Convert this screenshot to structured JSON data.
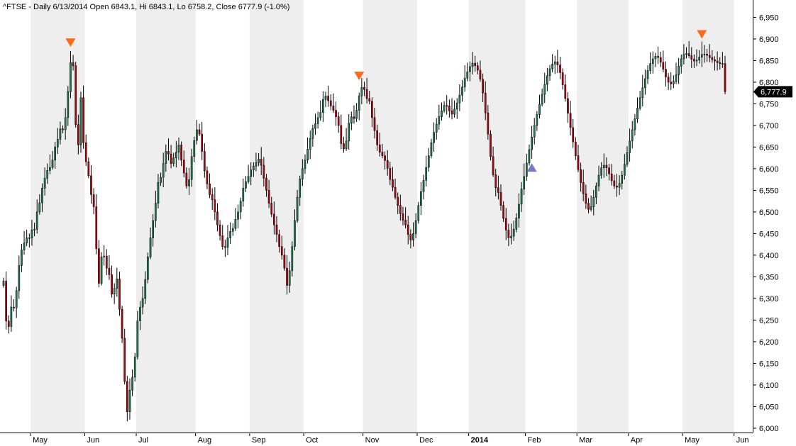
{
  "header": {
    "text": "^FTSE - Daily 6/13/2014 Open 6843.1, Hi 6843.1, Lo 6758.2, Close 6777.9 (-1.0%)"
  },
  "price_tag": {
    "label": "6,777.9",
    "value": 6777.9
  },
  "colors": {
    "up": "#1f7a50",
    "down": "#b4000a",
    "wick": "#000000",
    "band": "#eeeeee",
    "marker_top": "#ff6a1a",
    "marker_bottom": "#7a78c2",
    "price_tag": "#000000",
    "axis": "#000000"
  },
  "chart_data": {
    "type": "candlestick",
    "title": "^FTSE - Daily 6/13/2014 Open 6843.1, Hi 6843.1, Lo 6758.2, Close 6777.9 (-1.0%)",
    "ylim": [
      5990,
      6990
    ],
    "y_ticks": [
      "6,000",
      "6,050",
      "6,100",
      "6,150",
      "6,200",
      "6,250",
      "6,300",
      "6,350",
      "6,400",
      "6,450",
      "6,500",
      "6,550",
      "6,600",
      "6,650",
      "6,700",
      "6,750",
      "6,800",
      "6,850",
      "6,900",
      "6,950"
    ],
    "y_tick_values": [
      6000,
      6050,
      6100,
      6150,
      6200,
      6250,
      6300,
      6350,
      6400,
      6450,
      6500,
      6550,
      6600,
      6650,
      6700,
      6750,
      6800,
      6850,
      6900,
      6950
    ],
    "x_labels": [
      {
        "label": "May",
        "index": 11,
        "bold": false
      },
      {
        "label": "Jun",
        "index": 32,
        "bold": false
      },
      {
        "label": "Jul",
        "index": 52,
        "bold": false
      },
      {
        "label": "Aug",
        "index": 75,
        "bold": false
      },
      {
        "label": "Sep",
        "index": 96,
        "bold": false
      },
      {
        "label": "Oct",
        "index": 117,
        "bold": false
      },
      {
        "label": "Nov",
        "index": 140,
        "bold": false
      },
      {
        "label": "Dec",
        "index": 161,
        "bold": false
      },
      {
        "label": "2014",
        "index": 181,
        "bold": true
      },
      {
        "label": "Feb",
        "index": 203,
        "bold": false
      },
      {
        "label": "Mar",
        "index": 223,
        "bold": false
      },
      {
        "label": "Apr",
        "index": 243,
        "bold": false
      },
      {
        "label": "May",
        "index": 264,
        "bold": false
      },
      {
        "label": "Jun",
        "index": 284,
        "bold": false
      }
    ],
    "month_starts": [
      0,
      11,
      32,
      52,
      75,
      96,
      117,
      140,
      161,
      181,
      203,
      223,
      243,
      264,
      284,
      294
    ],
    "markers": [
      {
        "type": "top",
        "index": 26
      },
      {
        "type": "top",
        "index": 138
      },
      {
        "type": "bottom",
        "index": 205
      },
      {
        "type": "top",
        "index": 271
      }
    ],
    "closes": [
      6340,
      6248,
      6235,
      6280,
      6278,
      6318,
      6376,
      6412,
      6428,
      6440,
      6440,
      6458,
      6460,
      6500,
      6521,
      6555,
      6578,
      6596,
      6603,
      6620,
      6650,
      6668,
      6692,
      6690,
      6718,
      6778,
      6845,
      6838,
      6702,
      6655,
      6764,
      6660,
      6616,
      6584,
      6540,
      6512,
      6415,
      6335,
      6396,
      6398,
      6370,
      6355,
      6310,
      6323,
      6345,
      6275,
      6208,
      6108,
      6038,
      6088,
      6118,
      6165,
      6248,
      6280,
      6300,
      6344,
      6396,
      6440,
      6480,
      6520,
      6568,
      6580,
      6612,
      6640,
      6634,
      6612,
      6625,
      6638,
      6655,
      6620,
      6590,
      6560,
      6575,
      6628,
      6665,
      6690,
      6680,
      6640,
      6595,
      6565,
      6540,
      6528,
      6500,
      6470,
      6445,
      6420,
      6418,
      6440,
      6455,
      6462,
      6483,
      6500,
      6525,
      6555,
      6570,
      6582,
      6597,
      6606,
      6614,
      6622,
      6608,
      6578,
      6550,
      6520,
      6495,
      6470,
      6448,
      6420,
      6400,
      6370,
      6330,
      6364,
      6420,
      6480,
      6534,
      6576,
      6600,
      6620,
      6645,
      6670,
      6693,
      6704,
      6718,
      6730,
      6760,
      6768,
      6757,
      6745,
      6735,
      6720,
      6700,
      6658,
      6646,
      6664,
      6705,
      6720,
      6716,
      6735,
      6768,
      6788,
      6783,
      6762,
      6756,
      6718,
      6688,
      6655,
      6638,
      6630,
      6619,
      6601,
      6575,
      6557,
      6534,
      6515,
      6496,
      6481,
      6470,
      6448,
      6435,
      6450,
      6480,
      6515,
      6547,
      6573,
      6603,
      6630,
      6660,
      6684,
      6703,
      6720,
      6734,
      6746,
      6745,
      6734,
      6726,
      6738,
      6752,
      6770,
      6789,
      6809,
      6824,
      6836,
      6844,
      6838,
      6828,
      6807,
      6775,
      6729,
      6680,
      6628,
      6586,
      6556,
      6545,
      6515,
      6485,
      6458,
      6440,
      6444,
      6460,
      6486,
      6518,
      6553,
      6582,
      6613,
      6644,
      6673,
      6700,
      6725,
      6749,
      6772,
      6795,
      6815,
      6831,
      6842,
      6847,
      6840,
      6822,
      6794,
      6762,
      6728,
      6695,
      6662,
      6630,
      6598,
      6568,
      6542,
      6520,
      6506,
      6512,
      6534,
      6560,
      6585,
      6602,
      6608,
      6602,
      6588,
      6572,
      6560,
      6557,
      6566,
      6585,
      6610,
      6637,
      6664,
      6690,
      6715,
      6740,
      6764,
      6787,
      6808,
      6827,
      6843,
      6854,
      6860,
      6857,
      6846,
      6830,
      6812,
      6800,
      6796,
      6802,
      6817,
      6837,
      6854,
      6864,
      6866,
      6861,
      6853,
      6849,
      6851,
      6858,
      6864,
      6865,
      6862,
      6857,
      6852,
      6849,
      6845,
      6843,
      6843,
      6778
    ]
  }
}
